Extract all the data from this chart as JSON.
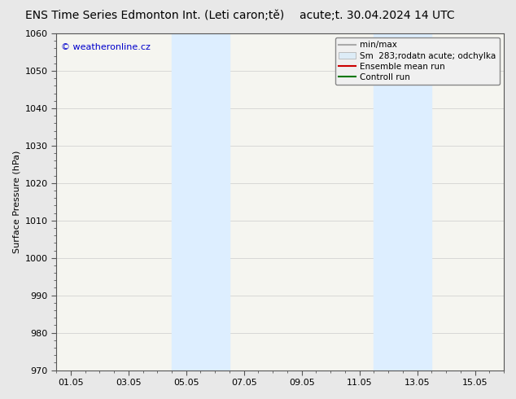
{
  "title_left": "ENS Time Series Edmonton Int. (Leti caron;tě)",
  "title_right": "acute;t. 30.04.2024 14 UTC",
  "ylabel": "Surface Pressure (hPa)",
  "ylim": [
    970,
    1060
  ],
  "yticks": [
    970,
    980,
    990,
    1000,
    1010,
    1020,
    1030,
    1040,
    1050,
    1060
  ],
  "xtick_labels": [
    "01.05",
    "03.05",
    "05.05",
    "07.05",
    "09.05",
    "11.05",
    "13.05",
    "15.05"
  ],
  "xtick_positions": [
    0,
    2,
    4,
    6,
    8,
    10,
    12,
    14
  ],
  "x_min": -0.5,
  "x_max": 15.0,
  "shaded_bands": [
    {
      "x_start": 3.5,
      "x_end": 5.5
    },
    {
      "x_start": 10.5,
      "x_end": 12.5
    }
  ],
  "shaded_color": "#ddeeff",
  "watermark": "© weatheronline.cz",
  "watermark_color": "#0000cc",
  "legend_items": [
    {
      "label": "min/max",
      "color": "#aaaaaa",
      "style": "line"
    },
    {
      "label": "Sm  283;rodatn acute; odchylka",
      "color": "#ddecf7",
      "style": "box"
    },
    {
      "label": "Ensemble mean run",
      "color": "#cc0000",
      "style": "line"
    },
    {
      "label": "Controll run",
      "color": "#007700",
      "style": "line"
    }
  ],
  "background_color": "#e8e8e8",
  "plot_bg_color": "#f5f5f0",
  "border_color": "#555555",
  "title_fontsize": 10,
  "tick_fontsize": 8,
  "ylabel_fontsize": 8,
  "watermark_fontsize": 8,
  "legend_fontsize": 7.5
}
